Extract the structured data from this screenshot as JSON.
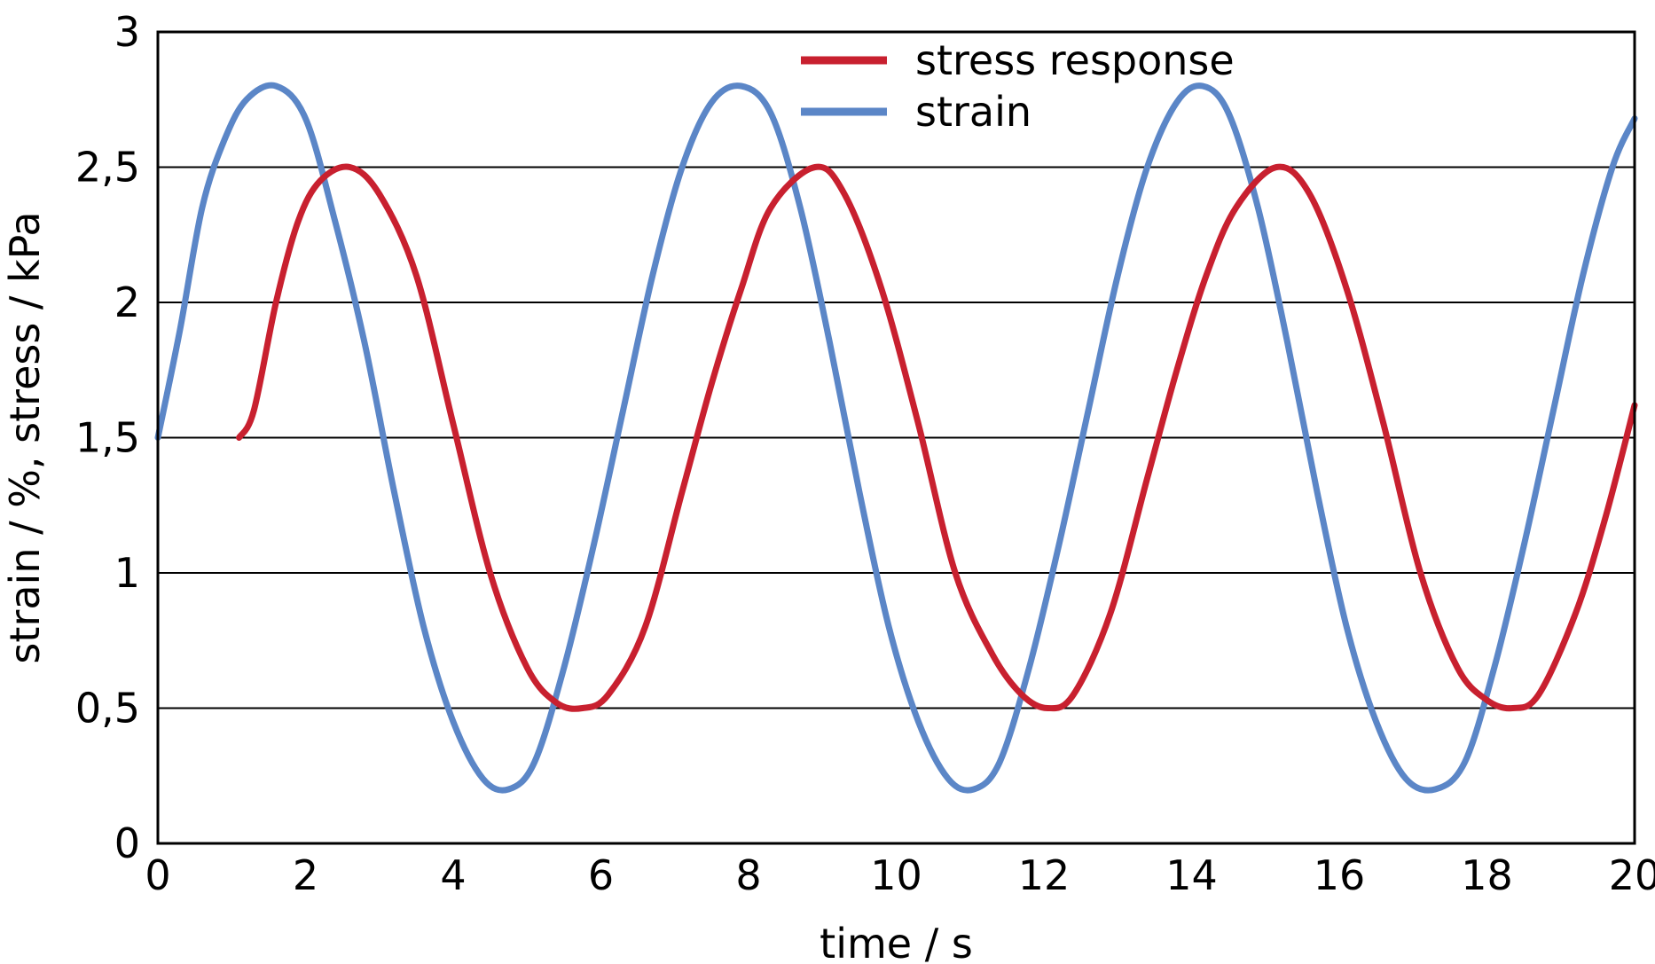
{
  "chart_data": {
    "type": "line",
    "title": "",
    "xlabel": "time / s",
    "ylabel": "strain / %, stress / kPa",
    "xlim": [
      0,
      20
    ],
    "ylim": [
      0,
      3
    ],
    "x_ticks": [
      0,
      2,
      4,
      6,
      8,
      10,
      12,
      14,
      16,
      18,
      20
    ],
    "x_tick_labels": [
      "0",
      "2",
      "4",
      "6",
      "8",
      "10",
      "12",
      "14",
      "16",
      "18",
      "20"
    ],
    "y_ticks": [
      0,
      0.5,
      1,
      1.5,
      2,
      2.5,
      3
    ],
    "y_tick_labels": [
      "0",
      "0,5",
      "1",
      "1,5",
      "2",
      "2,5",
      "3"
    ],
    "grid": "horizontal",
    "legend_position": "top-center",
    "series": [
      {
        "name": "stress response",
        "color": "#C8202F",
        "x": [
          1.1,
          1.3,
          1.6,
          1.9,
          2.2,
          2.6,
          3.0,
          3.5,
          4.0,
          4.5,
          5.0,
          5.4,
          5.75,
          6.1,
          6.6,
          7.1,
          7.5,
          7.9,
          8.3,
          8.9,
          9.3,
          9.8,
          10.3,
          10.8,
          11.3,
          11.7,
          12.05,
          12.4,
          12.9,
          13.4,
          13.8,
          14.2,
          14.6,
          15.15,
          15.6,
          16.1,
          16.6,
          17.1,
          17.6,
          18.0,
          18.35,
          18.7,
          19.2,
          19.6,
          20.0
        ],
        "values": [
          1.5,
          1.6,
          2.0,
          2.3,
          2.45,
          2.5,
          2.4,
          2.1,
          1.55,
          1.0,
          0.65,
          0.52,
          0.5,
          0.55,
          0.8,
          1.3,
          1.7,
          2.05,
          2.35,
          2.5,
          2.4,
          2.05,
          1.55,
          1.0,
          0.7,
          0.55,
          0.5,
          0.55,
          0.85,
          1.35,
          1.75,
          2.1,
          2.35,
          2.5,
          2.4,
          2.05,
          1.55,
          1.0,
          0.65,
          0.53,
          0.5,
          0.55,
          0.85,
          1.2,
          1.62
        ]
      },
      {
        "name": "strain",
        "color": "#5B86C7",
        "x": [
          0.0,
          0.3,
          0.6,
          0.9,
          1.2,
          1.6,
          2.0,
          2.4,
          2.8,
          3.2,
          3.6,
          4.0,
          4.4,
          4.75,
          5.1,
          5.5,
          5.9,
          6.3,
          6.7,
          7.1,
          7.5,
          7.9,
          8.3,
          8.7,
          9.1,
          9.5,
          9.9,
          10.3,
          10.7,
          11.05,
          11.4,
          11.8,
          12.2,
          12.6,
          13.0,
          13.4,
          13.8,
          14.15,
          14.5,
          14.9,
          15.3,
          15.7,
          16.1,
          16.5,
          16.9,
          17.3,
          17.7,
          18.1,
          18.5,
          18.9,
          19.3,
          19.7,
          20.0
        ],
        "values": [
          1.5,
          1.9,
          2.35,
          2.6,
          2.75,
          2.8,
          2.68,
          2.3,
          1.85,
          1.3,
          0.8,
          0.45,
          0.24,
          0.2,
          0.3,
          0.65,
          1.1,
          1.6,
          2.1,
          2.5,
          2.74,
          2.8,
          2.7,
          2.35,
          1.85,
          1.3,
          0.8,
          0.45,
          0.24,
          0.2,
          0.3,
          0.65,
          1.1,
          1.6,
          2.1,
          2.5,
          2.74,
          2.8,
          2.7,
          2.35,
          1.85,
          1.3,
          0.8,
          0.45,
          0.24,
          0.2,
          0.3,
          0.65,
          1.1,
          1.6,
          2.1,
          2.5,
          2.68
        ]
      }
    ]
  }
}
